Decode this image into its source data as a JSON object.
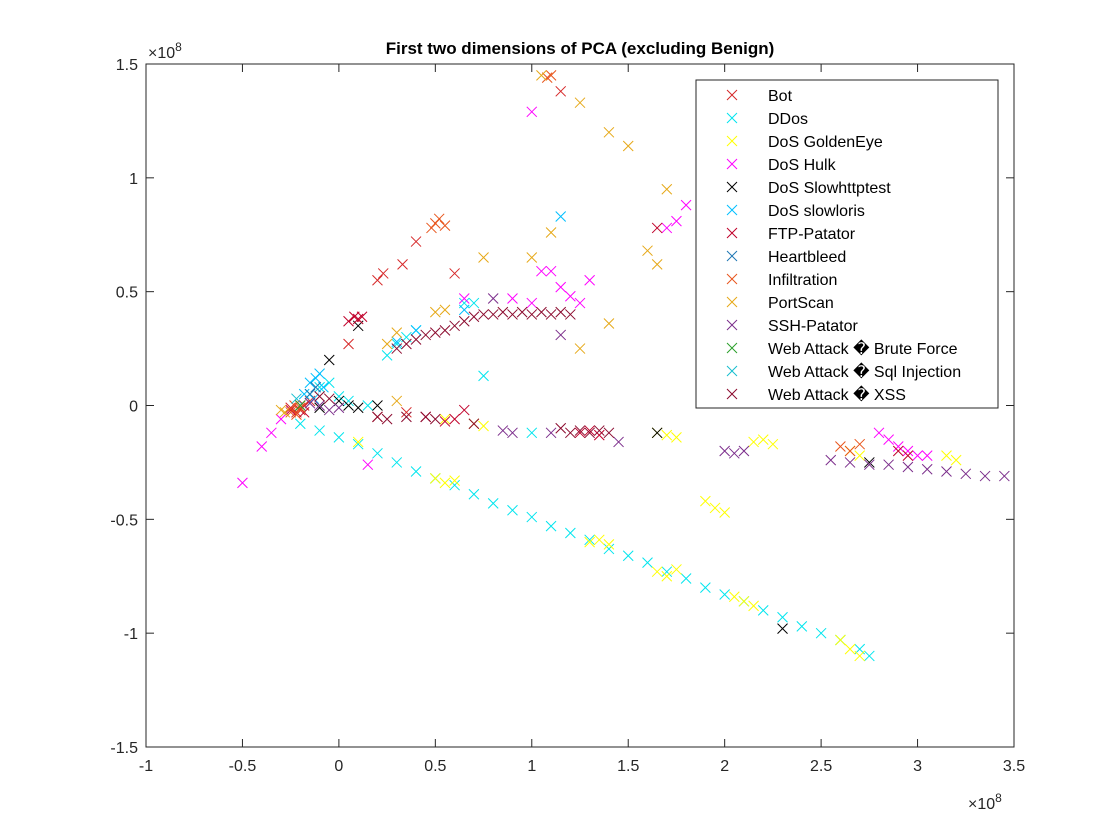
{
  "chart_data": {
    "type": "scatter",
    "title": "First two dimensions of PCA (excluding Benign)",
    "xlabel": "",
    "ylabel": "",
    "x_exponent_label": "×10",
    "x_exponent_power": "8",
    "y_exponent_label": "×10",
    "y_exponent_power": "8",
    "xlim": [
      -1,
      3.5
    ],
    "ylim": [
      -1.5,
      1.5
    ],
    "xticks": [
      -1,
      -0.5,
      0,
      0.5,
      1,
      1.5,
      2,
      2.5,
      3,
      3.5
    ],
    "yticks": [
      -1.5,
      -1,
      -0.5,
      0,
      0.5,
      1,
      1.5
    ],
    "xtick_labels": [
      "-1",
      "-0.5",
      "0",
      "0.5",
      "1",
      "1.5",
      "2",
      "2.5",
      "3",
      "3.5"
    ],
    "ytick_labels": [
      "-1.5",
      "-1",
      "-0.5",
      "0",
      "0.5",
      "1",
      "1.5"
    ],
    "grid": false,
    "legend_position": "top-right",
    "marker": "x",
    "series": [
      {
        "name": "Bot",
        "color": "#d62728",
        "points": [
          [
            -0.2,
            -0.02
          ],
          [
            -0.18,
            0.0
          ],
          [
            -0.22,
            -0.03
          ],
          [
            0.2,
            0.55
          ],
          [
            0.23,
            0.58
          ],
          [
            0.05,
            0.27
          ],
          [
            0.33,
            0.62
          ],
          [
            1.15,
            1.38
          ],
          [
            0.6,
            0.58
          ],
          [
            0.4,
            0.72
          ],
          [
            -0.25,
            -0.01
          ],
          [
            -0.15,
            0.02
          ],
          [
            0.2,
            -0.05
          ],
          [
            0.35,
            -0.03
          ]
        ]
      },
      {
        "name": "DDos",
        "color": "#00e5ee",
        "points": [
          [
            -0.2,
            -0.08
          ],
          [
            -0.1,
            -0.11
          ],
          [
            0.0,
            -0.14
          ],
          [
            0.1,
            -0.17
          ],
          [
            0.2,
            -0.21
          ],
          [
            0.3,
            -0.25
          ],
          [
            0.4,
            -0.29
          ],
          [
            0.5,
            -0.32
          ],
          [
            0.6,
            -0.35
          ],
          [
            0.7,
            -0.39
          ],
          [
            0.8,
            -0.43
          ],
          [
            0.9,
            -0.46
          ],
          [
            1.0,
            -0.49
          ],
          [
            1.1,
            -0.53
          ],
          [
            1.2,
            -0.56
          ],
          [
            1.3,
            -0.59
          ],
          [
            1.4,
            -0.63
          ],
          [
            1.5,
            -0.66
          ],
          [
            1.6,
            -0.69
          ],
          [
            1.7,
            -0.73
          ],
          [
            1.8,
            -0.76
          ],
          [
            1.9,
            -0.8
          ],
          [
            2.0,
            -0.83
          ],
          [
            2.1,
            -0.86
          ],
          [
            2.2,
            -0.9
          ],
          [
            2.3,
            -0.93
          ],
          [
            2.4,
            -0.97
          ],
          [
            2.5,
            -1.0
          ],
          [
            2.6,
            -1.03
          ],
          [
            2.7,
            -1.07
          ],
          [
            2.75,
            -1.1
          ],
          [
            -0.15,
            0.05
          ],
          [
            -0.1,
            0.08
          ],
          [
            -0.05,
            0.1
          ],
          [
            0.0,
            0.04
          ],
          [
            0.05,
            0.02
          ],
          [
            0.15,
            0.0
          ],
          [
            0.25,
            0.22
          ],
          [
            0.3,
            0.27
          ],
          [
            0.35,
            0.3
          ],
          [
            0.4,
            0.33
          ],
          [
            0.65,
            0.45
          ],
          [
            0.75,
            0.13
          ],
          [
            0.7,
            0.45
          ],
          [
            1.0,
            -0.12
          ]
        ]
      },
      {
        "name": "DoS GoldenEye",
        "color": "#ffff00",
        "points": [
          [
            0.5,
            -0.32
          ],
          [
            0.55,
            -0.34
          ],
          [
            0.6,
            -0.33
          ],
          [
            1.3,
            -0.6
          ],
          [
            1.35,
            -0.59
          ],
          [
            1.4,
            -0.61
          ],
          [
            1.65,
            -0.73
          ],
          [
            1.7,
            -0.75
          ],
          [
            1.75,
            -0.72
          ],
          [
            2.05,
            -0.84
          ],
          [
            2.1,
            -0.86
          ],
          [
            2.15,
            -0.88
          ],
          [
            2.6,
            -1.03
          ],
          [
            2.65,
            -1.07
          ],
          [
            2.7,
            -1.1
          ],
          [
            1.7,
            -0.13
          ],
          [
            1.65,
            -0.12
          ],
          [
            1.75,
            -0.14
          ],
          [
            2.15,
            -0.16
          ],
          [
            2.2,
            -0.15
          ],
          [
            2.25,
            -0.17
          ],
          [
            1.9,
            -0.42
          ],
          [
            1.95,
            -0.45
          ],
          [
            2.0,
            -0.47
          ],
          [
            2.65,
            -0.2
          ],
          [
            2.7,
            -0.22
          ],
          [
            3.15,
            -0.22
          ],
          [
            3.2,
            -0.24
          ],
          [
            0.7,
            -0.08
          ],
          [
            0.75,
            -0.09
          ],
          [
            0.55,
            -0.06
          ],
          [
            0.1,
            -0.16
          ]
        ]
      },
      {
        "name": "DoS Hulk",
        "color": "#ff00ff",
        "points": [
          [
            -0.5,
            -0.34
          ],
          [
            -0.4,
            -0.18
          ],
          [
            -0.35,
            -0.12
          ],
          [
            -0.3,
            -0.06
          ],
          [
            -0.25,
            -0.02
          ],
          [
            0.15,
            -0.26
          ],
          [
            1.0,
            1.29
          ],
          [
            1.05,
            0.59
          ],
          [
            1.1,
            0.59
          ],
          [
            1.15,
            0.52
          ],
          [
            1.2,
            0.48
          ],
          [
            1.25,
            0.45
          ],
          [
            1.3,
            0.55
          ],
          [
            0.65,
            0.47
          ],
          [
            1.7,
            0.78
          ],
          [
            1.75,
            0.81
          ],
          [
            1.8,
            0.88
          ],
          [
            2.8,
            -0.12
          ],
          [
            2.85,
            -0.15
          ],
          [
            2.9,
            -0.18
          ],
          [
            2.95,
            -0.2
          ],
          [
            3.0,
            -0.22
          ],
          [
            3.05,
            -0.22
          ],
          [
            1.0,
            0.45
          ],
          [
            0.9,
            0.47
          ]
        ]
      },
      {
        "name": "DoS Slowhttptest",
        "color": "#000000",
        "points": [
          [
            -0.05,
            0.2
          ],
          [
            0.1,
            0.35
          ],
          [
            0.0,
            0.02
          ],
          [
            0.05,
            0.0
          ],
          [
            0.1,
            -0.01
          ],
          [
            2.3,
            -0.98
          ],
          [
            1.65,
            -0.12
          ],
          [
            2.75,
            -0.25
          ],
          [
            -0.1,
            -0.01
          ],
          [
            0.2,
            0.0
          ]
        ]
      },
      {
        "name": "DoS slowloris",
        "color": "#00bfff",
        "points": [
          [
            -0.15,
            0.1
          ],
          [
            -0.12,
            0.12
          ],
          [
            -0.1,
            0.14
          ],
          [
            -0.18,
            0.05
          ],
          [
            -0.08,
            0.08
          ],
          [
            -0.13,
            0.03
          ],
          [
            1.15,
            0.83
          ],
          [
            0.65,
            0.42
          ],
          [
            0.4,
            0.33
          ],
          [
            0.3,
            0.28
          ]
        ]
      },
      {
        "name": "FTP-Patator",
        "color": "#c0002a",
        "points": [
          [
            1.65,
            0.78
          ],
          [
            0.1,
            0.38
          ],
          [
            0.05,
            0.37
          ],
          [
            0.12,
            0.39
          ],
          [
            0.08,
            0.39
          ],
          [
            -0.2,
            0.0
          ],
          [
            -0.25,
            -0.02
          ],
          [
            -0.18,
            -0.03
          ],
          [
            1.25,
            -0.12
          ],
          [
            1.3,
            -0.11
          ],
          [
            1.35,
            -0.13
          ],
          [
            0.55,
            -0.07
          ],
          [
            0.6,
            -0.06
          ],
          [
            0.45,
            -0.05
          ],
          [
            0.65,
            -0.02
          ],
          [
            2.9,
            -0.2
          ],
          [
            2.95,
            -0.22
          ]
        ]
      },
      {
        "name": "Heartbleed",
        "color": "#1f77b4",
        "points": [
          [
            -0.15,
            0.05
          ],
          [
            -0.12,
            0.08
          ]
        ]
      },
      {
        "name": "Infiltration",
        "color": "#e8551c",
        "points": [
          [
            0.5,
            0.8
          ],
          [
            0.52,
            0.82
          ],
          [
            0.55,
            0.79
          ],
          [
            0.48,
            0.78
          ],
          [
            -0.25,
            -0.03
          ],
          [
            -0.2,
            -0.01
          ],
          [
            -0.23,
            0.0
          ],
          [
            2.6,
            -0.18
          ],
          [
            2.65,
            -0.2
          ],
          [
            2.7,
            -0.17
          ],
          [
            1.1,
            1.45
          ],
          [
            1.08,
            1.44
          ],
          [
            -0.22,
            -0.04
          ]
        ]
      },
      {
        "name": "PortScan",
        "color": "#e6a817",
        "points": [
          [
            1.25,
            1.33
          ],
          [
            1.4,
            1.2
          ],
          [
            1.5,
            1.14
          ],
          [
            1.6,
            0.68
          ],
          [
            1.65,
            0.62
          ],
          [
            1.7,
            0.95
          ],
          [
            1.1,
            0.76
          ],
          [
            1.0,
            0.65
          ],
          [
            0.75,
            0.65
          ],
          [
            0.5,
            0.41
          ],
          [
            0.25,
            0.27
          ],
          [
            1.25,
            0.25
          ],
          [
            1.4,
            0.36
          ],
          [
            0.55,
            0.42
          ],
          [
            -0.3,
            -0.02
          ],
          [
            -0.28,
            -0.03
          ],
          [
            0.3,
            0.02
          ],
          [
            1.05,
            1.45
          ],
          [
            0.3,
            0.32
          ]
        ]
      },
      {
        "name": "SSH-Patator",
        "color": "#7b2d8b",
        "points": [
          [
            2.55,
            -0.24
          ],
          [
            2.65,
            -0.25
          ],
          [
            2.75,
            -0.26
          ],
          [
            2.85,
            -0.26
          ],
          [
            2.95,
            -0.27
          ],
          [
            3.05,
            -0.28
          ],
          [
            3.15,
            -0.29
          ],
          [
            3.25,
            -0.3
          ],
          [
            3.35,
            -0.31
          ],
          [
            3.45,
            -0.31
          ],
          [
            2.0,
            -0.2
          ],
          [
            2.05,
            -0.21
          ],
          [
            2.1,
            -0.2
          ],
          [
            1.45,
            -0.16
          ],
          [
            1.1,
            -0.12
          ],
          [
            0.85,
            -0.11
          ],
          [
            0.9,
            -0.12
          ],
          [
            0.8,
            0.47
          ],
          [
            1.15,
            0.31
          ],
          [
            -0.15,
            0.01
          ],
          [
            -0.1,
            0.0
          ],
          [
            -0.05,
            -0.02
          ],
          [
            0.0,
            -0.01
          ]
        ]
      },
      {
        "name": "Web Attack � Brute Force",
        "color": "#2ca02c",
        "points": [
          [
            -0.2,
            0.0
          ]
        ]
      },
      {
        "name": "Web Attack � Sql Injection",
        "color": "#17becf",
        "points": [
          [
            -0.22,
            0.03
          ]
        ]
      },
      {
        "name": "Web Attack � XSS",
        "color": "#8b0a2e",
        "points": [
          [
            0.35,
            0.27
          ],
          [
            0.4,
            0.29
          ],
          [
            0.45,
            0.31
          ],
          [
            0.5,
            0.32
          ],
          [
            0.55,
            0.33
          ],
          [
            0.6,
            0.35
          ],
          [
            0.65,
            0.37
          ],
          [
            0.7,
            0.39
          ],
          [
            0.75,
            0.4
          ],
          [
            0.8,
            0.4
          ],
          [
            0.85,
            0.41
          ],
          [
            0.9,
            0.4
          ],
          [
            0.95,
            0.41
          ],
          [
            1.0,
            0.4
          ],
          [
            1.05,
            0.41
          ],
          [
            1.1,
            0.4
          ],
          [
            1.15,
            0.41
          ],
          [
            1.2,
            0.4
          ],
          [
            0.5,
            -0.06
          ],
          [
            0.45,
            -0.05
          ],
          [
            0.35,
            -0.05
          ],
          [
            0.25,
            -0.06
          ],
          [
            0.2,
            -0.05
          ],
          [
            1.15,
            -0.1
          ],
          [
            1.2,
            -0.12
          ],
          [
            1.25,
            -0.11
          ],
          [
            1.3,
            -0.12
          ],
          [
            1.35,
            -0.11
          ],
          [
            1.4,
            -0.12
          ],
          [
            0.7,
            -0.08
          ],
          [
            0.3,
            0.25
          ],
          [
            -0.1,
            0.04
          ],
          [
            -0.05,
            0.03
          ]
        ]
      }
    ]
  }
}
